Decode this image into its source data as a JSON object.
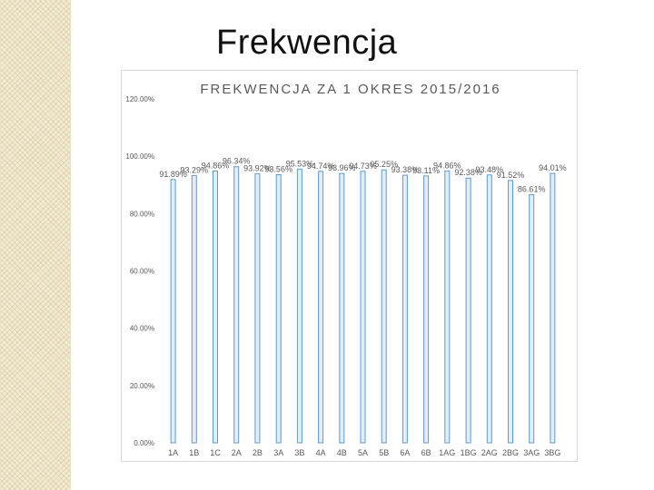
{
  "slide": {
    "title": "Frekwencja"
  },
  "chart_data": {
    "type": "bar",
    "title": "FREKWENCJA ZA 1 OKRES 2015/2016",
    "xlabel": "",
    "ylabel": "",
    "ylim": [
      0,
      120
    ],
    "yticks": [
      "0.00%",
      "20.00%",
      "40.00%",
      "60.00%",
      "80.00%",
      "100.00%",
      "120.00%"
    ],
    "ytick_values": [
      0,
      20,
      40,
      60,
      80,
      100,
      120
    ],
    "categories": [
      "1A",
      "1B",
      "1C",
      "2A",
      "2B",
      "3A",
      "3B",
      "4A",
      "4B",
      "5A",
      "5B",
      "6A",
      "6B",
      "1AG",
      "1BG",
      "2AG",
      "2BG",
      "3AG",
      "3BG"
    ],
    "values": [
      91.89,
      93.29,
      94.86,
      96.34,
      93.92,
      93.56,
      95.53,
      94.74,
      93.96,
      94.73,
      95.25,
      93.38,
      93.11,
      94.86,
      92.38,
      93.48,
      91.52,
      86.61,
      94.01
    ],
    "data_labels": [
      "91.89%",
      "93.29%",
      "94.86%",
      "96.34%",
      "93.92%",
      "93.56%",
      "95.53%",
      "94.74%",
      "93.96%",
      "94.73%",
      "95.25%",
      "93.38%",
      "93.11%",
      "94.86%",
      "92.38%",
      "93.48%",
      "91.52%",
      "86.61%",
      "94.01%"
    ],
    "grid": false,
    "legend": "none",
    "colors": {
      "bar_fill": "#e3edf5",
      "bar_outline": "#5b9bd5",
      "text": "#595959",
      "title": "#595959"
    }
  }
}
